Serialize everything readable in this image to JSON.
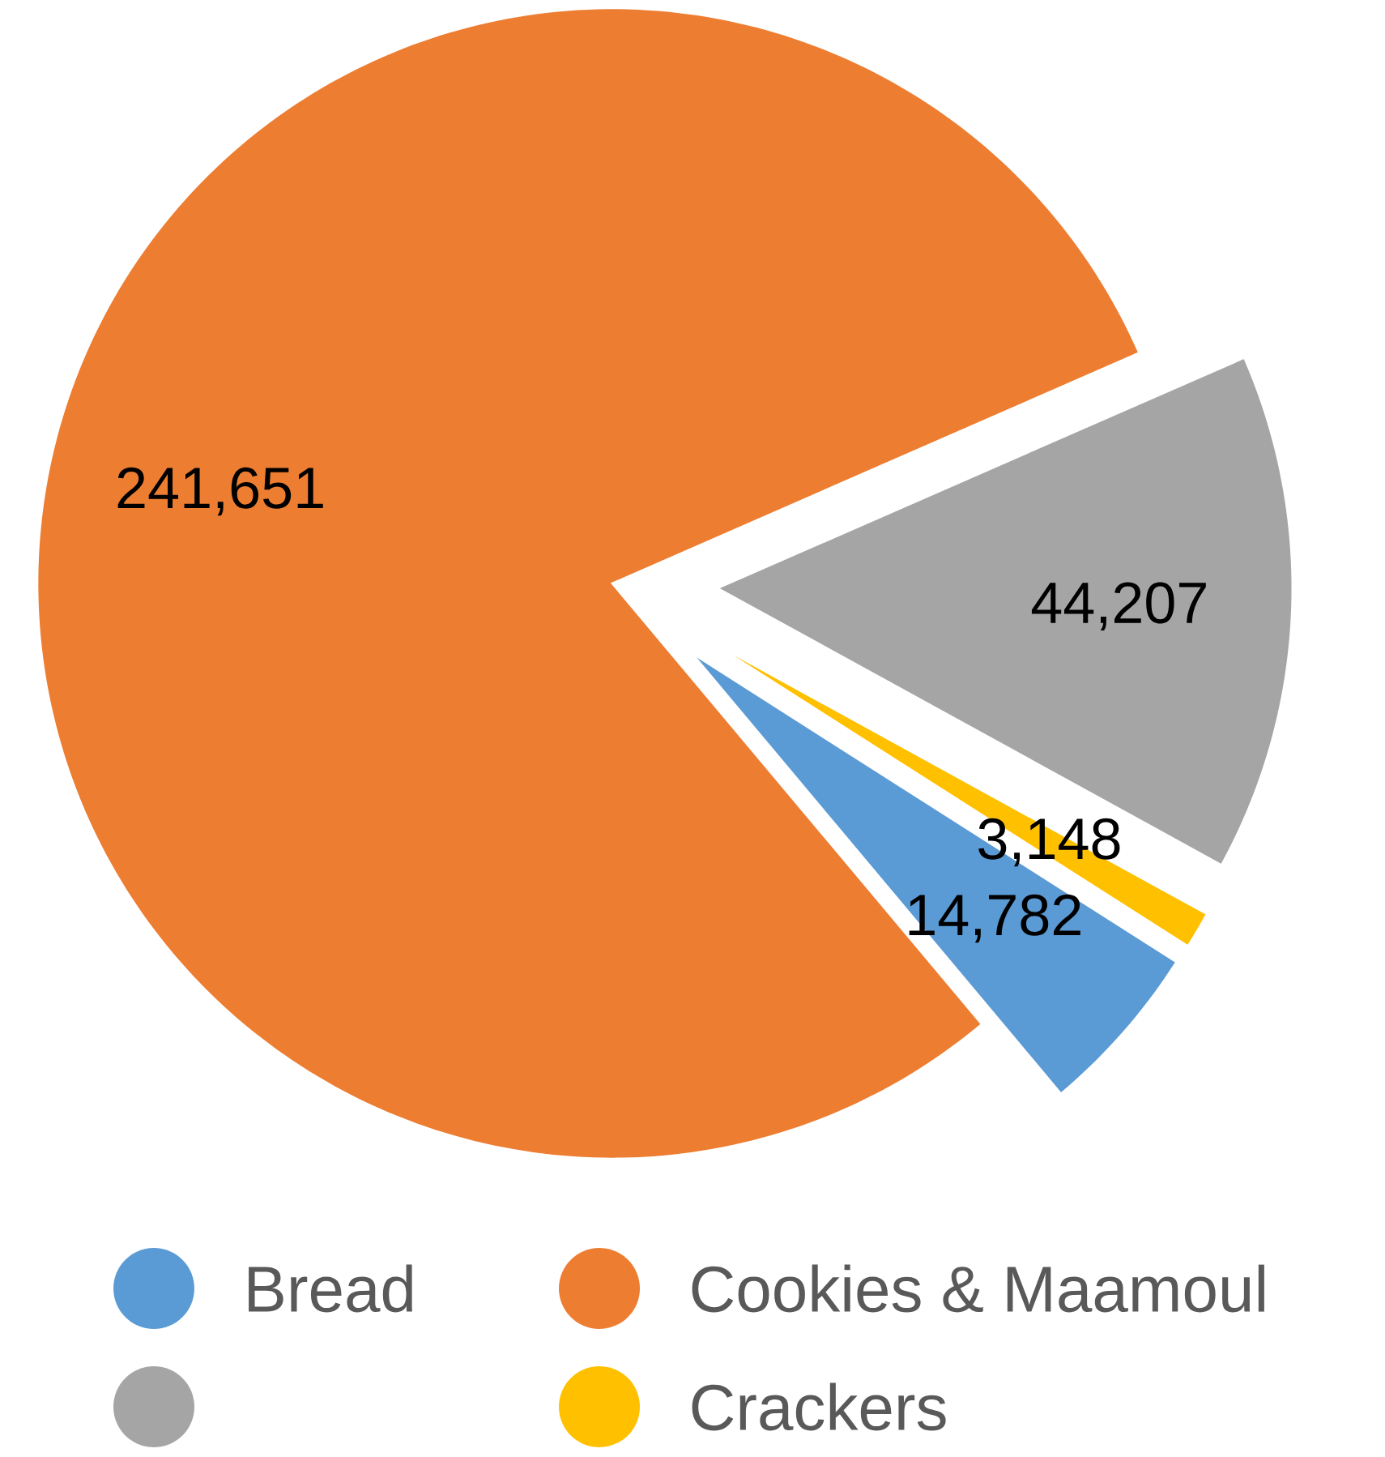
{
  "chart_data": {
    "type": "pie",
    "categories": [
      "Bread",
      "Cookies & Maamoul",
      null,
      "Crackers"
    ],
    "values": [
      14782,
      241651,
      44207,
      3148
    ],
    "value_labels": [
      "14,782",
      "241,651",
      "44,207",
      "3,148"
    ],
    "colors": [
      "#5b9bd5",
      "#ed7d31",
      "#a5a5a5",
      "#ffc000"
    ],
    "legend": "bottom"
  }
}
